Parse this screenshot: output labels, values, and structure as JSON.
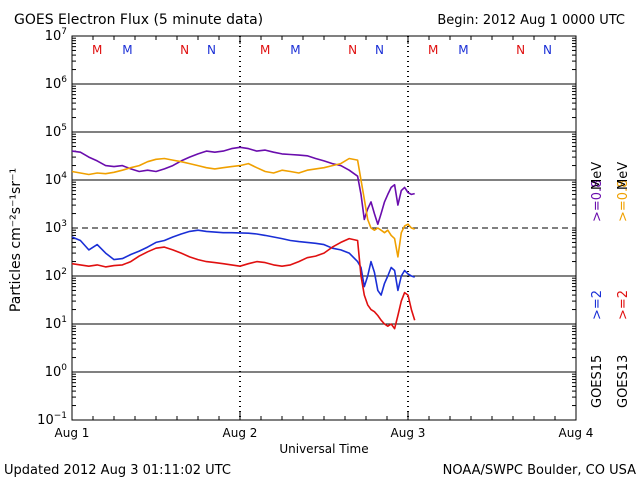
{
  "header": {
    "title": "GOES Electron Flux (5 minute data)",
    "begin": "Begin: 2012 Aug 1 0000 UTC"
  },
  "footer": {
    "updated": "Updated 2012 Aug  3 01:11:02 UTC",
    "source": "NOAA/SWPC Boulder, CO USA"
  },
  "colors": {
    "goes15_ge08": "#6a0dad",
    "goes15_ge2": "#1a2fd6",
    "goes13_ge08": "#f0a000",
    "goes13_ge2": "#e01010",
    "marker_M": "#e01010",
    "marker_M_alt": "#1a2fd6"
  },
  "chart_data": {
    "type": "line",
    "title": "GOES Electron Flux (5 minute data)",
    "xlabel": "Universal Time",
    "ylabel": "Particles cm⁻²s⁻¹sr⁻¹",
    "y_scale": "log",
    "ylim": [
      0.1,
      10000000
    ],
    "xlim": [
      0,
      3
    ],
    "x_ticks": [
      {
        "v": 0,
        "label": "Aug 1"
      },
      {
        "v": 1,
        "label": "Aug 2"
      },
      {
        "v": 2,
        "label": "Aug 3"
      },
      {
        "v": 3,
        "label": "Aug 4"
      }
    ],
    "y_ticks": [
      {
        "exp": 7,
        "label": "10",
        "sup": "7"
      },
      {
        "exp": 6,
        "label": "10",
        "sup": "6"
      },
      {
        "exp": 5,
        "label": "10",
        "sup": "5"
      },
      {
        "exp": 4,
        "label": "10",
        "sup": "4"
      },
      {
        "exp": 3,
        "label": "10",
        "sup": "3"
      },
      {
        "exp": 2,
        "label": "10",
        "sup": "2"
      },
      {
        "exp": 1,
        "label": "10",
        "sup": "1"
      },
      {
        "exp": 0,
        "label": "10",
        "sup": "0"
      },
      {
        "exp": -1,
        "label": "10",
        "sup": "−1"
      }
    ],
    "threshold": {
      "value": 1000,
      "style": "dashed"
    },
    "day_markers": [
      {
        "x": 0.15,
        "label": "M",
        "color": "#e01010"
      },
      {
        "x": 0.33,
        "label": "M",
        "color": "#1a2fd6"
      },
      {
        "x": 0.67,
        "label": "N",
        "color": "#e01010"
      },
      {
        "x": 0.83,
        "label": "N",
        "color": "#1a2fd6"
      },
      {
        "x": 1.15,
        "label": "M",
        "color": "#e01010"
      },
      {
        "x": 1.33,
        "label": "M",
        "color": "#1a2fd6"
      },
      {
        "x": 1.67,
        "label": "N",
        "color": "#e01010"
      },
      {
        "x": 1.83,
        "label": "N",
        "color": "#1a2fd6"
      },
      {
        "x": 2.15,
        "label": "M",
        "color": "#e01010"
      },
      {
        "x": 2.33,
        "label": "M",
        "color": "#1a2fd6"
      },
      {
        "x": 2.67,
        "label": "N",
        "color": "#e01010"
      },
      {
        "x": 2.83,
        "label": "N",
        "color": "#1a2fd6"
      }
    ],
    "legend": {
      "placement": "right",
      "groups": [
        {
          "satellite": "GOES15",
          "entries": [
            {
              "label": ">=2",
              "color": "#1a2fd6"
            },
            {
              "label": ">=0.8",
              "color": "#6a0dad"
            }
          ]
        },
        {
          "satellite": "GOES13",
          "entries": [
            {
              "label": ">=2",
              "color": "#e01010"
            },
            {
              "label": ">=0.8",
              "color": "#f0a000"
            }
          ]
        }
      ],
      "unit": "MeV"
    },
    "series": [
      {
        "name": "GOES15 >=0.8 MeV",
        "color": "#6a0dad",
        "x": [
          0,
          0.05,
          0.1,
          0.15,
          0.2,
          0.25,
          0.3,
          0.35,
          0.4,
          0.45,
          0.5,
          0.55,
          0.6,
          0.65,
          0.7,
          0.75,
          0.8,
          0.85,
          0.9,
          0.95,
          1.0,
          1.05,
          1.1,
          1.15,
          1.2,
          1.25,
          1.3,
          1.35,
          1.4,
          1.45,
          1.5,
          1.55,
          1.6,
          1.65,
          1.7,
          1.72,
          1.74,
          1.76,
          1.78,
          1.8,
          1.82,
          1.84,
          1.86,
          1.88,
          1.9,
          1.92,
          1.94,
          1.96,
          1.98,
          2.0,
          2.02,
          2.04
        ],
        "y": [
          40000,
          38000,
          30000,
          25000,
          20000,
          19000,
          20000,
          17000,
          15000,
          16000,
          15000,
          17000,
          20000,
          25000,
          30000,
          35000,
          40000,
          38000,
          40000,
          45000,
          48000,
          45000,
          40000,
          42000,
          38000,
          35000,
          34000,
          33000,
          32000,
          28000,
          25000,
          22000,
          20000,
          16000,
          12000,
          5000,
          1500,
          2500,
          3500,
          2000,
          1200,
          2000,
          3500,
          5000,
          7000,
          8000,
          3000,
          6000,
          7000,
          5500,
          5000,
          5200
        ]
      },
      {
        "name": "GOES13 >=0.8 MeV",
        "color": "#f0a000",
        "x": [
          0,
          0.05,
          0.1,
          0.15,
          0.2,
          0.25,
          0.3,
          0.35,
          0.4,
          0.45,
          0.5,
          0.55,
          0.6,
          0.65,
          0.7,
          0.75,
          0.8,
          0.85,
          0.9,
          0.95,
          1.0,
          1.05,
          1.1,
          1.15,
          1.2,
          1.25,
          1.3,
          1.35,
          1.4,
          1.45,
          1.5,
          1.55,
          1.6,
          1.65,
          1.7,
          1.72,
          1.74,
          1.76,
          1.78,
          1.8,
          1.82,
          1.84,
          1.86,
          1.88,
          1.9,
          1.92,
          1.94,
          1.96,
          1.98,
          2.0,
          2.02,
          2.04
        ],
        "y": [
          15000,
          14000,
          13000,
          14000,
          13500,
          14500,
          16000,
          18000,
          20000,
          24000,
          27000,
          28000,
          26000,
          24000,
          22000,
          20000,
          18000,
          17000,
          18000,
          19000,
          20000,
          22000,
          18000,
          15000,
          14000,
          16000,
          15000,
          14000,
          16000,
          17000,
          18000,
          20000,
          22000,
          28000,
          26000,
          10000,
          4000,
          1500,
          1000,
          900,
          1000,
          900,
          800,
          900,
          700,
          600,
          250,
          800,
          1100,
          1200,
          1000,
          950
        ]
      },
      {
        "name": "GOES15 >=2 MeV",
        "color": "#1a2fd6",
        "x": [
          0,
          0.05,
          0.1,
          0.15,
          0.2,
          0.25,
          0.3,
          0.35,
          0.4,
          0.45,
          0.5,
          0.55,
          0.6,
          0.65,
          0.7,
          0.75,
          0.8,
          0.85,
          0.9,
          0.95,
          1.0,
          1.05,
          1.1,
          1.15,
          1.2,
          1.25,
          1.3,
          1.35,
          1.4,
          1.45,
          1.5,
          1.55,
          1.6,
          1.65,
          1.7,
          1.72,
          1.74,
          1.76,
          1.78,
          1.8,
          1.82,
          1.84,
          1.86,
          1.88,
          1.9,
          1.92,
          1.94,
          1.96,
          1.98,
          2.0,
          2.02,
          2.04
        ],
        "y": [
          650,
          550,
          350,
          450,
          300,
          220,
          230,
          280,
          330,
          400,
          500,
          550,
          650,
          750,
          850,
          900,
          850,
          820,
          800,
          800,
          790,
          780,
          750,
          700,
          650,
          600,
          550,
          520,
          500,
          480,
          450,
          380,
          350,
          300,
          200,
          150,
          60,
          100,
          200,
          120,
          50,
          40,
          70,
          100,
          150,
          130,
          50,
          100,
          130,
          110,
          100,
          95
        ]
      },
      {
        "name": "GOES13 >=2 MeV",
        "color": "#e01010",
        "x": [
          0,
          0.05,
          0.1,
          0.15,
          0.2,
          0.25,
          0.3,
          0.35,
          0.4,
          0.45,
          0.5,
          0.55,
          0.6,
          0.65,
          0.7,
          0.75,
          0.8,
          0.85,
          0.9,
          0.95,
          1.0,
          1.05,
          1.1,
          1.15,
          1.2,
          1.25,
          1.3,
          1.35,
          1.4,
          1.45,
          1.5,
          1.55,
          1.6,
          1.65,
          1.7,
          1.72,
          1.74,
          1.76,
          1.78,
          1.8,
          1.82,
          1.84,
          1.86,
          1.88,
          1.9,
          1.92,
          1.94,
          1.96,
          1.98,
          2.0,
          2.02,
          2.04
        ],
        "y": [
          180,
          170,
          160,
          170,
          155,
          165,
          170,
          200,
          260,
          320,
          380,
          400,
          350,
          300,
          250,
          220,
          200,
          190,
          180,
          170,
          160,
          180,
          200,
          190,
          170,
          160,
          170,
          200,
          240,
          260,
          300,
          400,
          500,
          600,
          550,
          100,
          40,
          25,
          20,
          18,
          15,
          12,
          10,
          9,
          10,
          8,
          15,
          30,
          45,
          40,
          20,
          12
        ]
      }
    ]
  }
}
